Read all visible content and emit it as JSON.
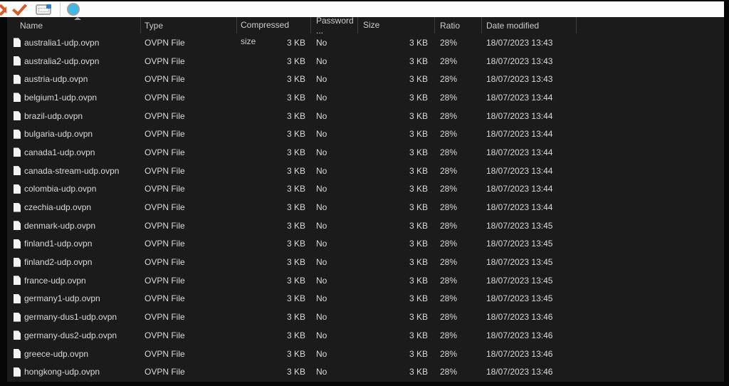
{
  "toolbar": {
    "icons": [
      "close-x-icon",
      "confirm-check-icon",
      "envelope-icon",
      "color-blob-icon"
    ]
  },
  "table": {
    "columns": [
      {
        "label": "Name"
      },
      {
        "label": "Type"
      },
      {
        "label": "Compressed size"
      },
      {
        "label": "Password ..."
      },
      {
        "label": "Size"
      },
      {
        "label": "Ratio"
      },
      {
        "label": "Date modified"
      }
    ],
    "sort": {
      "column": "Name",
      "direction": "ascending"
    },
    "rows": [
      {
        "name": "australia1-udp.ovpn",
        "type": "OVPN File",
        "compressed_size": "3 KB",
        "password": "No",
        "size": "3 KB",
        "ratio": "28%",
        "date_modified": "18/07/2023 13:43"
      },
      {
        "name": "australia2-udp.ovpn",
        "type": "OVPN File",
        "compressed_size": "3 KB",
        "password": "No",
        "size": "3 KB",
        "ratio": "28%",
        "date_modified": "18/07/2023 13:43"
      },
      {
        "name": "austria-udp.ovpn",
        "type": "OVPN File",
        "compressed_size": "3 KB",
        "password": "No",
        "size": "3 KB",
        "ratio": "28%",
        "date_modified": "18/07/2023 13:43"
      },
      {
        "name": "belgium1-udp.ovpn",
        "type": "OVPN File",
        "compressed_size": "3 KB",
        "password": "No",
        "size": "3 KB",
        "ratio": "28%",
        "date_modified": "18/07/2023 13:44"
      },
      {
        "name": "brazil-udp.ovpn",
        "type": "OVPN File",
        "compressed_size": "3 KB",
        "password": "No",
        "size": "3 KB",
        "ratio": "28%",
        "date_modified": "18/07/2023 13:44"
      },
      {
        "name": "bulgaria-udp.ovpn",
        "type": "OVPN File",
        "compressed_size": "3 KB",
        "password": "No",
        "size": "3 KB",
        "ratio": "28%",
        "date_modified": "18/07/2023 13:44"
      },
      {
        "name": "canada1-udp.ovpn",
        "type": "OVPN File",
        "compressed_size": "3 KB",
        "password": "No",
        "size": "3 KB",
        "ratio": "28%",
        "date_modified": "18/07/2023 13:44"
      },
      {
        "name": "canada-stream-udp.ovpn",
        "type": "OVPN File",
        "compressed_size": "3 KB",
        "password": "No",
        "size": "3 KB",
        "ratio": "28%",
        "date_modified": "18/07/2023 13:44"
      },
      {
        "name": "colombia-udp.ovpn",
        "type": "OVPN File",
        "compressed_size": "3 KB",
        "password": "No",
        "size": "3 KB",
        "ratio": "28%",
        "date_modified": "18/07/2023 13:44"
      },
      {
        "name": "czechia-udp.ovpn",
        "type": "OVPN File",
        "compressed_size": "3 KB",
        "password": "No",
        "size": "3 KB",
        "ratio": "28%",
        "date_modified": "18/07/2023 13:44"
      },
      {
        "name": "denmark-udp.ovpn",
        "type": "OVPN File",
        "compressed_size": "3 KB",
        "password": "No",
        "size": "3 KB",
        "ratio": "28%",
        "date_modified": "18/07/2023 13:45"
      },
      {
        "name": "finland1-udp.ovpn",
        "type": "OVPN File",
        "compressed_size": "3 KB",
        "password": "No",
        "size": "3 KB",
        "ratio": "28%",
        "date_modified": "18/07/2023 13:45"
      },
      {
        "name": "finland2-udp.ovpn",
        "type": "OVPN File",
        "compressed_size": "3 KB",
        "password": "No",
        "size": "3 KB",
        "ratio": "28%",
        "date_modified": "18/07/2023 13:45"
      },
      {
        "name": "france-udp.ovpn",
        "type": "OVPN File",
        "compressed_size": "3 KB",
        "password": "No",
        "size": "3 KB",
        "ratio": "28%",
        "date_modified": "18/07/2023 13:45"
      },
      {
        "name": "germany1-udp.ovpn",
        "type": "OVPN File",
        "compressed_size": "3 KB",
        "password": "No",
        "size": "3 KB",
        "ratio": "28%",
        "date_modified": "18/07/2023 13:45"
      },
      {
        "name": "germany-dus1-udp.ovpn",
        "type": "OVPN File",
        "compressed_size": "3 KB",
        "password": "No",
        "size": "3 KB",
        "ratio": "28%",
        "date_modified": "18/07/2023 13:46"
      },
      {
        "name": "germany-dus2-udp.ovpn",
        "type": "OVPN File",
        "compressed_size": "3 KB",
        "password": "No",
        "size": "3 KB",
        "ratio": "28%",
        "date_modified": "18/07/2023 13:46"
      },
      {
        "name": "greece-udp.ovpn",
        "type": "OVPN File",
        "compressed_size": "3 KB",
        "password": "No",
        "size": "3 KB",
        "ratio": "28%",
        "date_modified": "18/07/2023 13:46"
      },
      {
        "name": "hongkong-udp.ovpn",
        "type": "OVPN File",
        "compressed_size": "3 KB",
        "password": "No",
        "size": "3 KB",
        "ratio": "28%",
        "date_modified": "18/07/2023 13:46"
      }
    ]
  }
}
